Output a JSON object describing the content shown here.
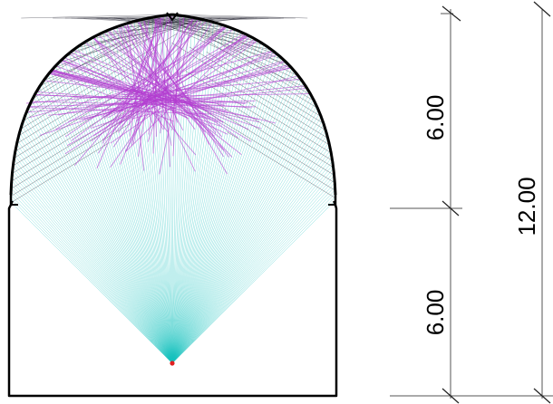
{
  "dimensions": {
    "upper": "6.00",
    "lower": "6.00",
    "total": "12.00"
  },
  "colors": {
    "outline": "#000000",
    "direct_rays": "#19c2c0",
    "reflected_rays": "#b23cd0",
    "grazing_rays": "#2a2a36",
    "source": "#e02020",
    "dimension_lines": "#555555"
  },
  "ray_fan": {
    "spread_degrees": 90,
    "ray_count": 150
  },
  "icons": {
    "source": "source-point-icon"
  }
}
